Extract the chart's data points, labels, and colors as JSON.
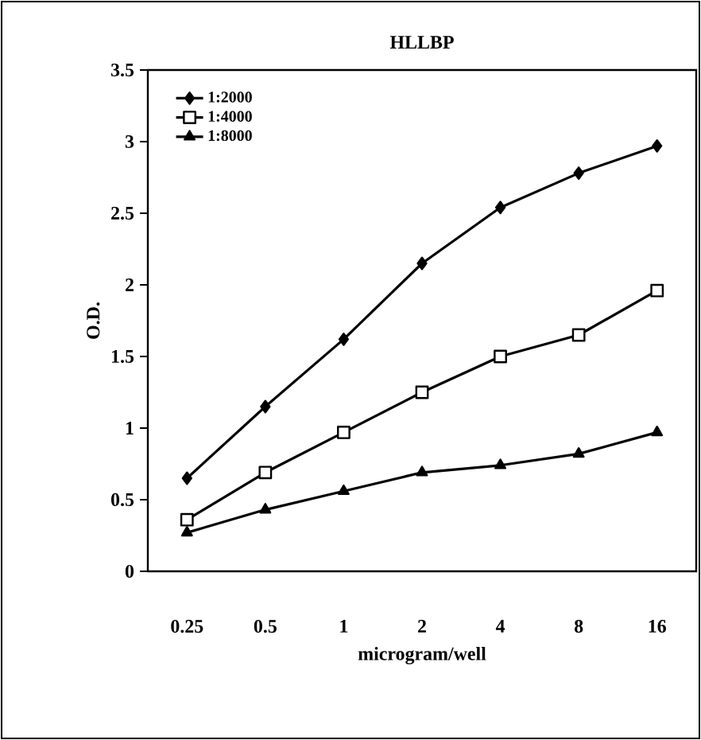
{
  "chart_data": {
    "type": "line",
    "title": "HLLBP",
    "xlabel": "microgram/well",
    "ylabel": "O.D.",
    "categories": [
      "0.25",
      "0.5",
      "1",
      "2",
      "4",
      "8",
      "16"
    ],
    "series": [
      {
        "name": "1:2000",
        "color": "#000000",
        "marker": "diamond",
        "values": [
          0.65,
          1.15,
          1.62,
          2.15,
          2.54,
          2.78,
          2.97
        ]
      },
      {
        "name": "1:4000",
        "color": "#000000",
        "marker": "square",
        "values": [
          0.36,
          0.69,
          0.97,
          1.25,
          1.5,
          1.65,
          1.96
        ]
      },
      {
        "name": "1:8000",
        "color": "#000000",
        "marker": "triangle",
        "values": [
          0.27,
          0.43,
          0.56,
          0.69,
          0.74,
          0.82,
          0.97
        ]
      }
    ],
    "ylim": [
      0,
      3.5
    ],
    "yticks": [
      0,
      0.5,
      1,
      1.5,
      2,
      2.5,
      3,
      3.5
    ],
    "grid": false,
    "legend": "top left",
    "line_style": "solid"
  }
}
